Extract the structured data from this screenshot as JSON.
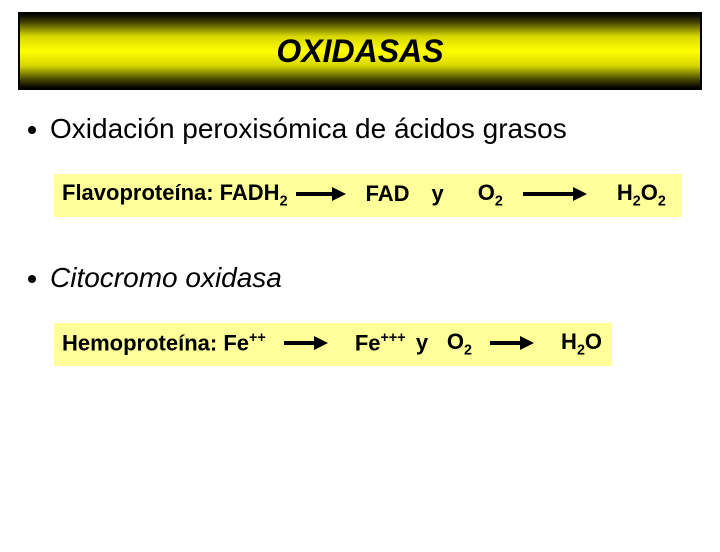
{
  "title": "OXIDASAS",
  "bullet1": "Oxidación peroxisómica de ácidos grasos",
  "bullet2": "Citocromo  oxidasa",
  "reaction1": {
    "prefix": "Flavoproteína: FADH",
    "prefix_sub": "2",
    "mid1": "FAD",
    "mid2": "y",
    "mid3_pre": "O",
    "mid3_sub": "2",
    "prod_pre": "H",
    "prod_sub1": "2",
    "prod_mid": "O",
    "prod_sub2": "2",
    "arrow1_width": 36,
    "arrow2_width": 50,
    "bg": "#ffff99"
  },
  "reaction2": {
    "prefix": "Hemoproteína: Fe",
    "prefix_sup": "++",
    "mid1_pre": "Fe",
    "mid1_sup": "+++",
    "mid2": "y",
    "mid3_pre": "O",
    "mid3_sub": "2",
    "prod_pre": "H",
    "prod_sub": "2",
    "prod_post": "O",
    "arrow1_width": 30,
    "arrow2_width": 30,
    "bg": "#ffff99"
  },
  "colors": {
    "text": "#000000",
    "background": "#ffffff",
    "highlight": "#ffff99"
  }
}
